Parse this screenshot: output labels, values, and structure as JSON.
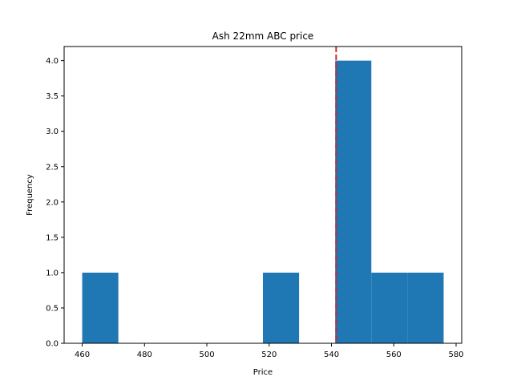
{
  "chart_data": {
    "type": "bar",
    "subtype": "histogram",
    "title": "Ash 22mm ABC price",
    "xlabel": "Price",
    "ylabel": "Frequency",
    "xlim": [
      454.2,
      581.8
    ],
    "ylim": [
      0,
      4.2
    ],
    "x_ticks": [
      "460",
      "480",
      "500",
      "520",
      "540",
      "560",
      "580"
    ],
    "y_ticks": [
      "0.0",
      "0.5",
      "1.0",
      "1.5",
      "2.0",
      "2.5",
      "3.0",
      "3.5",
      "4.0"
    ],
    "bins": [
      {
        "start": 460.0,
        "end": 471.6,
        "count": 1
      },
      {
        "start": 471.6,
        "end": 483.2,
        "count": 0
      },
      {
        "start": 483.2,
        "end": 494.8,
        "count": 0
      },
      {
        "start": 494.8,
        "end": 506.4,
        "count": 0
      },
      {
        "start": 506.4,
        "end": 518.0,
        "count": 0
      },
      {
        "start": 518.0,
        "end": 529.6,
        "count": 1
      },
      {
        "start": 529.6,
        "end": 541.2,
        "count": 0
      },
      {
        "start": 541.2,
        "end": 552.8,
        "count": 4
      },
      {
        "start": 552.8,
        "end": 564.4,
        "count": 1
      },
      {
        "start": 564.4,
        "end": 576.0,
        "count": 1
      }
    ],
    "reference_line": {
      "x": 541.5,
      "style": "dashed",
      "color": "#d62728"
    },
    "bar_color": "#1f77b4",
    "grid": false
  }
}
